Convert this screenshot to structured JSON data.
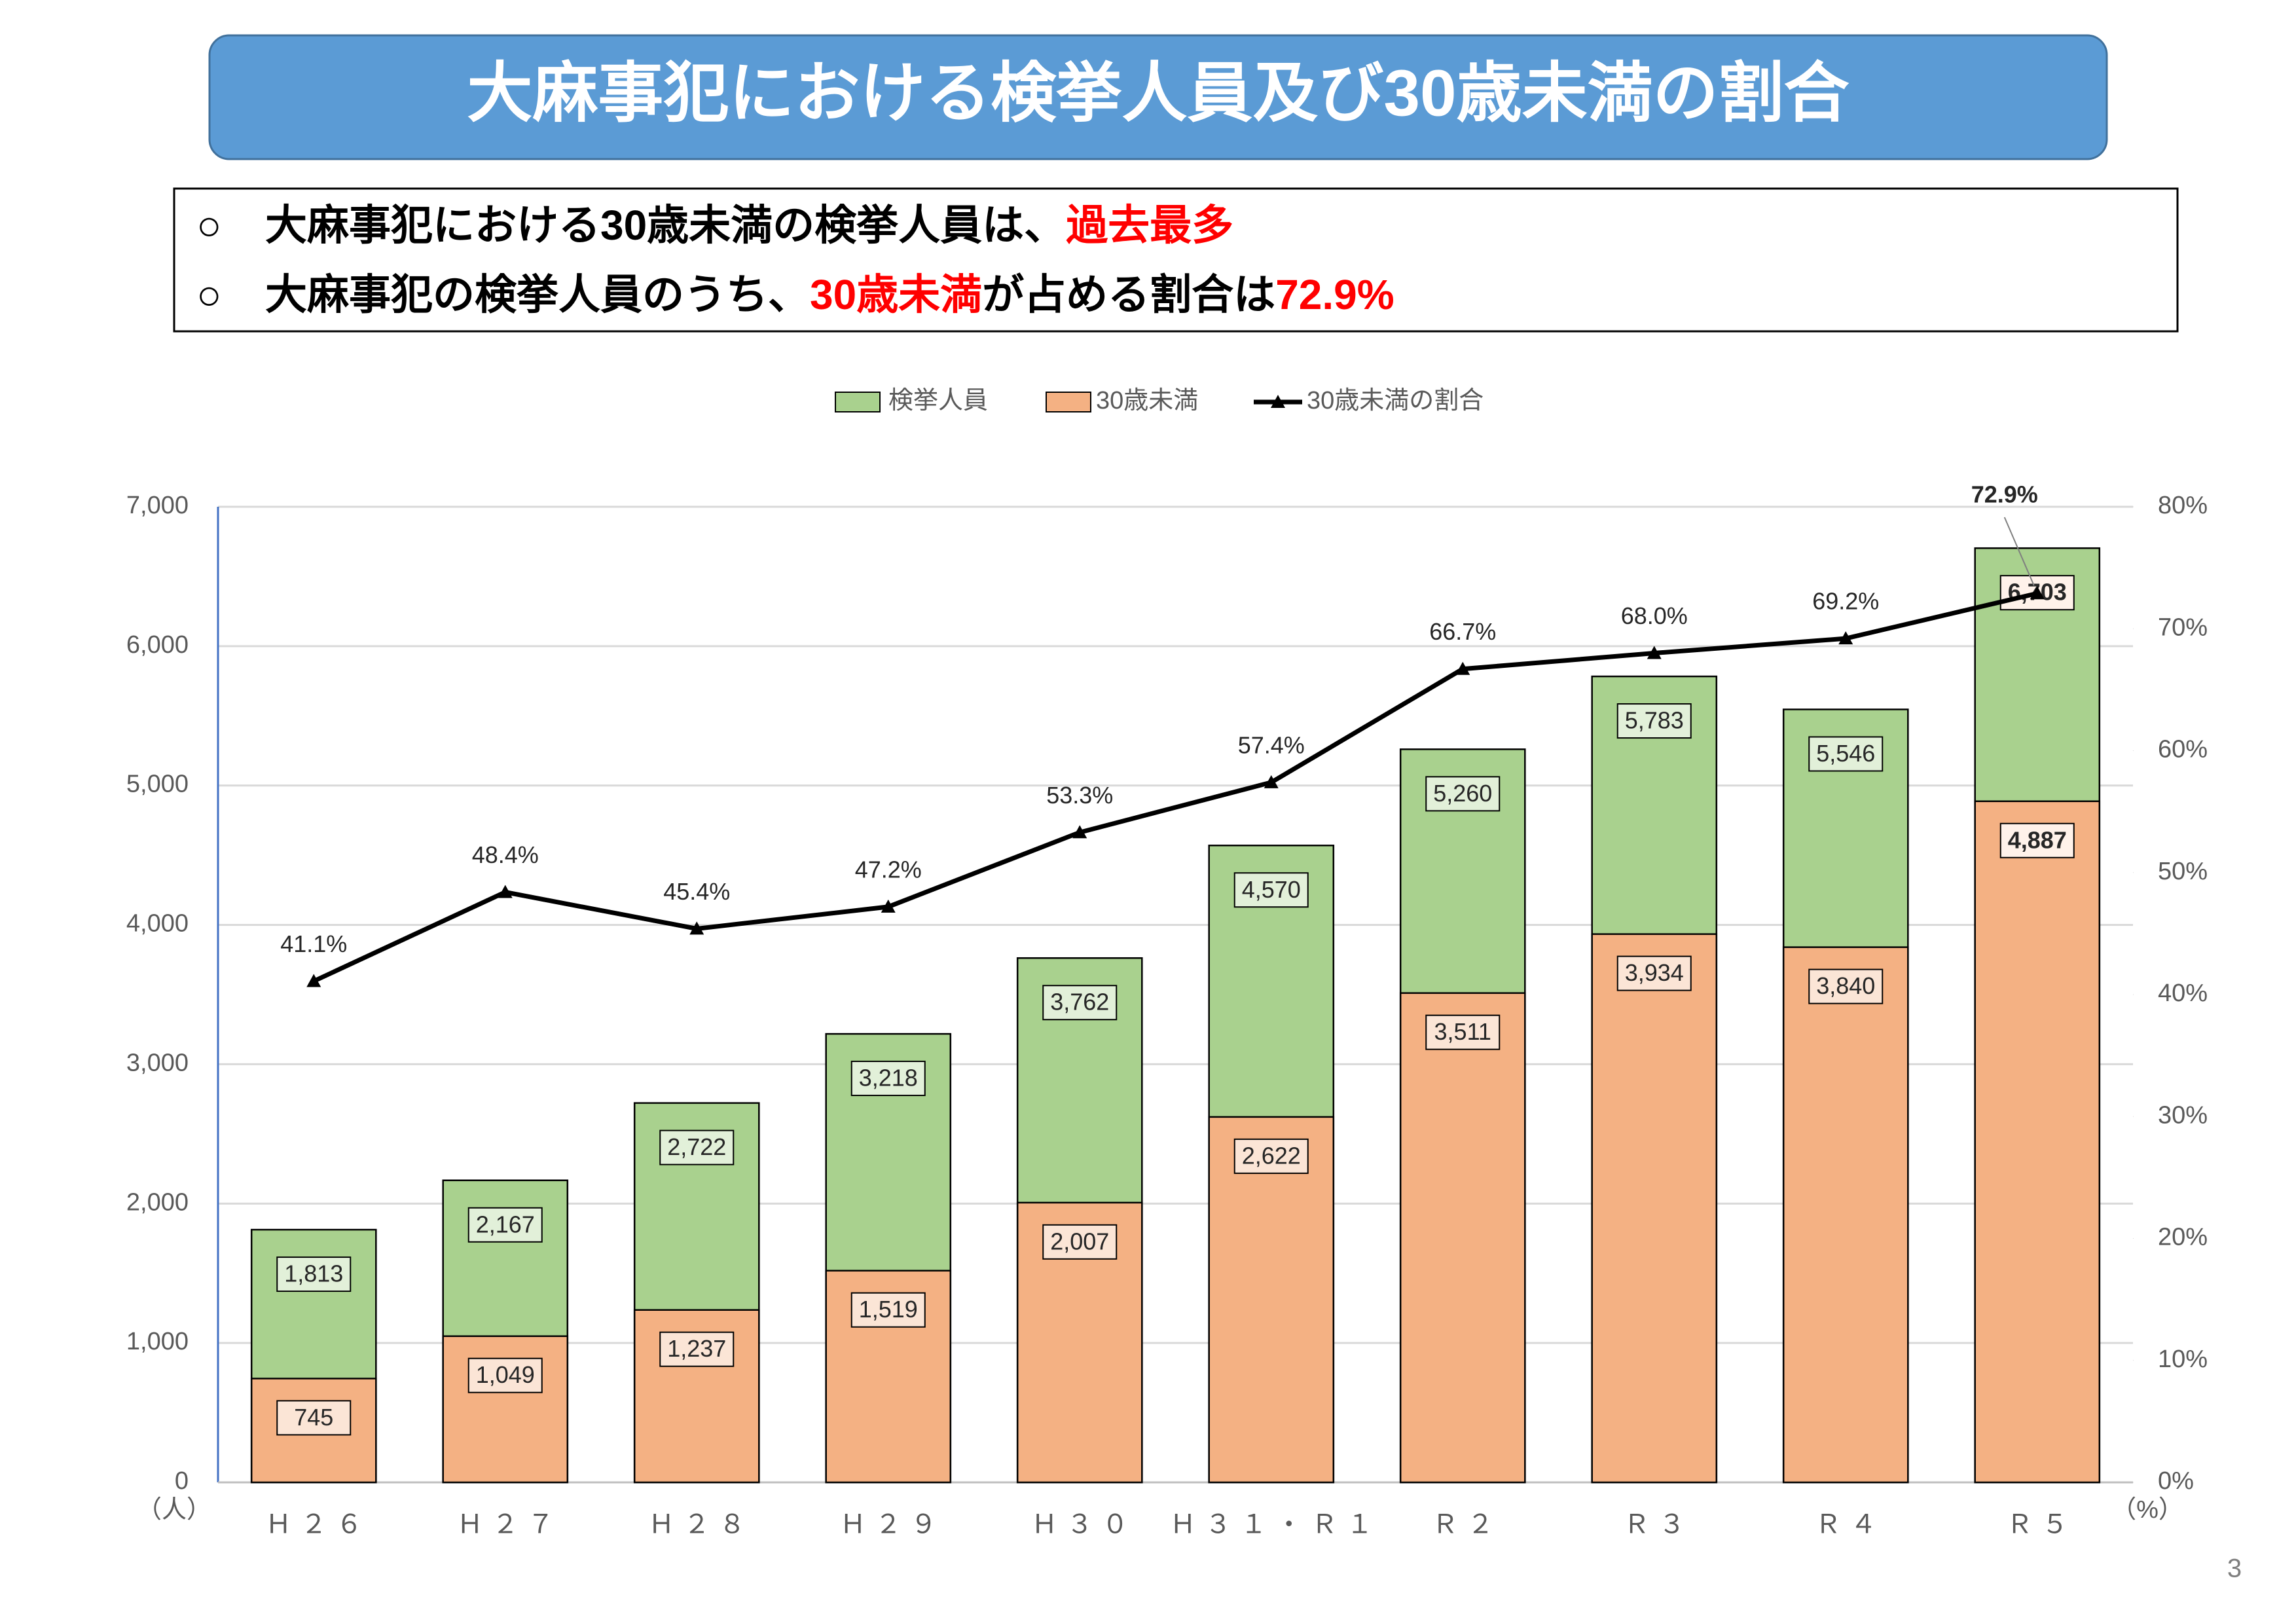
{
  "header": {
    "title": "大麻事犯における検挙人員及び30歳未満の割合"
  },
  "summary": {
    "bullets": [
      {
        "marker": "○",
        "parts": [
          {
            "text": "大麻事犯における30歳未満の検挙人員は、"
          },
          {
            "text": "過去最多",
            "color": "#ff0000"
          }
        ]
      },
      {
        "marker": "○",
        "parts": [
          {
            "text": "大麻事犯の検挙人員のうち、"
          },
          {
            "text": "30歳未満",
            "color": "#ff0000"
          },
          {
            "text": "が占める割合は"
          },
          {
            "text": "72.9%",
            "color": "#ff0000"
          }
        ]
      }
    ]
  },
  "chart_data": {
    "type": "bar",
    "overlap": true,
    "categories": [
      "Ｈ２６",
      "Ｈ２７",
      "Ｈ２８",
      "Ｈ２９",
      "Ｈ３０",
      "Ｈ３１・Ｒ１",
      "Ｒ２",
      "Ｒ３",
      "Ｒ４",
      "Ｒ５"
    ],
    "series": [
      {
        "name": "検挙人員",
        "type": "bar",
        "color": "#a9d18e",
        "label_fill": "#e2f0d9",
        "values": [
          1813,
          2167,
          2722,
          3218,
          3762,
          4570,
          5260,
          5783,
          5546,
          6703
        ],
        "value_labels": [
          "1,813",
          "2,167",
          "2,722",
          "3,218",
          "3,762",
          "4,570",
          "5,260",
          "5,783",
          "5,546",
          "6,703"
        ]
      },
      {
        "name": "30歳未満",
        "type": "bar",
        "color": "#f4b183",
        "label_fill": "#fbe5d6",
        "values": [
          745,
          1049,
          1237,
          1519,
          2007,
          2622,
          3511,
          3934,
          3840,
          4887
        ],
        "value_labels": [
          "745",
          "1,049",
          "1,237",
          "1,519",
          "2,007",
          "2,622",
          "3,511",
          "3,934",
          "3,840",
          "4,887"
        ]
      },
      {
        "name": "30歳未満の割合",
        "type": "line",
        "axis": "y2",
        "color": "#000000",
        "values": [
          41.1,
          48.4,
          45.4,
          47.2,
          53.3,
          57.4,
          66.7,
          68.0,
          69.2,
          72.9
        ],
        "value_labels": [
          "41.1%",
          "48.4%",
          "45.4%",
          "47.2%",
          "53.3%",
          "57.4%",
          "66.7%",
          "68.0%",
          "69.2%",
          "72.9%"
        ]
      }
    ],
    "ylim": [
      0,
      7000
    ],
    "yticks": [
      0,
      {
        "value": 1000,
        "label": "1,000"
      },
      {
        "value": 2000,
        "label": "2,000"
      },
      {
        "value": 3000,
        "label": "3,000"
      },
      {
        "value": 4000,
        "label": "4,000"
      },
      {
        "value": 5000,
        "label": "5,000"
      },
      {
        "value": 6000,
        "label": "6,000"
      },
      {
        "value": 7000,
        "label": "7,000"
      }
    ],
    "y2lim": [
      0,
      80
    ],
    "y2ticks": [
      {
        "value": 0,
        "label": "0%"
      },
      {
        "value": 10,
        "label": "10%"
      },
      {
        "value": 20,
        "label": "20%"
      },
      {
        "value": 30,
        "label": "30%"
      },
      {
        "value": 40,
        "label": "40%"
      },
      {
        "value": 50,
        "label": "50%"
      },
      {
        "value": 60,
        "label": "60%"
      },
      {
        "value": 70,
        "label": "70%"
      },
      {
        "value": 80,
        "label": "80%"
      }
    ],
    "y_unit": "（人）",
    "y2_unit": "（%）",
    "grid": true,
    "legend": "top",
    "highlight_color": "#ff0000",
    "highlight_index": 9
  },
  "page_number": "3"
}
